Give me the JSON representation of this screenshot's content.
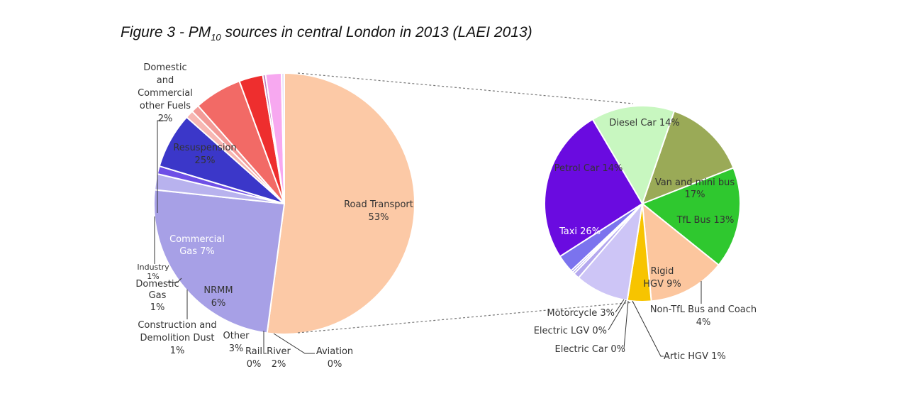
{
  "figure": {
    "title_prefix": "Figure 3 - PM",
    "title_sub": "10",
    "title_suffix": " sources in central London in 2013 (LAEI 2013)"
  },
  "chart_data": [
    {
      "type": "pie",
      "slices": [
        {
          "label": "Road Transport",
          "value": 53,
          "value_label": "53%",
          "color": "#fcc9a6"
        },
        {
          "label": "Resuspension",
          "value": 25,
          "value_label": "25%",
          "color": "#a7a0e6"
        },
        {
          "label": "Domestic and Commercial other Fuels",
          "value": 2,
          "value_label": "2%",
          "color": "#b8b2ee"
        },
        {
          "label": "Industry",
          "value": 1,
          "value_label": "1%",
          "color": "#6e4fe6"
        },
        {
          "label": "Commercial Gas",
          "value": 7,
          "value_label": "7%",
          "color": "#3b37c9"
        },
        {
          "label": "Domestic Gas",
          "value": 1,
          "value_label": "1%",
          "color": "#f7b7b3"
        },
        {
          "label": "Construction and Demolition Dust",
          "value": 1,
          "value_label": "1%",
          "color": "#f39a97"
        },
        {
          "label": "NRMM",
          "value": 6,
          "value_label": "6%",
          "color": "#f26a66"
        },
        {
          "label": "Other",
          "value": 3,
          "value_label": "3%",
          "color": "#ee2e2e"
        },
        {
          "label": "Rail",
          "value": 0,
          "value_label": "0%",
          "color": "#c080c0"
        },
        {
          "label": "River",
          "value": 2,
          "value_label": "2%",
          "color": "#f7a8f0"
        },
        {
          "label": "Aviation",
          "value": 0,
          "value_label": "0%",
          "color": "#e8e0f8"
        }
      ]
    },
    {
      "type": "pie",
      "slices": [
        {
          "label": "Diesel Car",
          "value": 14,
          "value_label": "14%",
          "color": "#9aaa57"
        },
        {
          "label": "Van and mini bus",
          "value": 17,
          "value_label": "17%",
          "color": "#2fc82f"
        },
        {
          "label": "TfL Bus",
          "value": 13,
          "value_label": "13%",
          "color": "#fcc69e"
        },
        {
          "label": "Non-TfL Bus and Coach",
          "value": 4,
          "value_label": "4%",
          "color": "#f7c400"
        },
        {
          "label": "Rigid HGV",
          "value": 9,
          "value_label": "9%",
          "color": "#cdc5f6"
        },
        {
          "label": "Artic HGV",
          "value": 1,
          "value_label": "1%",
          "color": "#b4a8ee"
        },
        {
          "label": "Electric Car",
          "value": 0,
          "value_label": "0%",
          "color": "#9a8ee8"
        },
        {
          "label": "Electric LGV",
          "value": 0,
          "value_label": "0%",
          "color": "#8b80e8"
        },
        {
          "label": "Motorcycle",
          "value": 3,
          "value_label": "3%",
          "color": "#7b73ee"
        },
        {
          "label": "Taxi",
          "value": 26,
          "value_label": "26%",
          "color": "#6a0be0"
        },
        {
          "label": "Petrol Car",
          "value": 14,
          "value_label": "14%",
          "color": "#c8f7c0"
        }
      ]
    }
  ],
  "labels": {
    "left": {
      "road_1": "Road Transport",
      "road_2": "53%",
      "resus_1": "Resuspension",
      "resus_2": "25%",
      "dcof_1": "Domestic",
      "dcof_2": "and",
      "dcof_3": "Commercial",
      "dcof_4": "other Fuels",
      "dcof_5": "2%",
      "cgas_1": "Commercial",
      "cgas_2": "Gas 7%",
      "ind_1": "Industry",
      "ind_2": "1%",
      "dgas_1": "Domestic",
      "dgas_2": "Gas",
      "dgas_3": "1%",
      "cdd_1": "Construction and",
      "cdd_2": "Demolition Dust",
      "cdd_3": "1%",
      "nrmm_1": "NRMM",
      "nrmm_2": "6%",
      "other_1": "Other",
      "other_2": "3%",
      "rail_1": "Rail",
      "rail_2": "0%",
      "river_1": "River",
      "river_2": "2%",
      "aviation_1": "Aviation",
      "aviation_2": "0%"
    },
    "right": {
      "diesel": "Diesel Car 14%",
      "petrol": "Petrol Car 14%",
      "van_1": "Van and mini bus",
      "van_2": "17%",
      "tflbus": "TfL Bus 13%",
      "taxi": "Taxi 26%",
      "rigid_1": "Rigid",
      "rigid_2": "HGV 9%",
      "nontfl_1": "Non-TfL Bus and Coach",
      "nontfl_2": "4%",
      "motorcycle": "Motorcycle 3%",
      "elgv": "Electric LGV 0%",
      "ecar": "Electric Car 0%",
      "artic": "Artic HGV 1%"
    }
  }
}
